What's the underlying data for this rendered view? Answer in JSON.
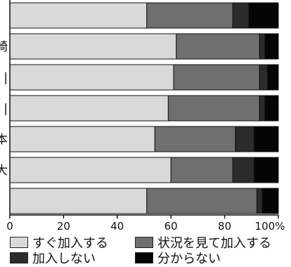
{
  "chart_data": {
    "type": "bar",
    "orientation": "horizontal",
    "stacked": true,
    "categories": [
      "",
      "崎",
      "|",
      "|",
      "本",
      "大",
      "」"
    ],
    "xlim": [
      0,
      100
    ],
    "x_ticks": [
      "0",
      "20",
      "40",
      "60",
      "80",
      "100%"
    ],
    "series": [
      {
        "name": "すぐ加入する",
        "color": "#d9d9d9",
        "values": [
          51,
          62,
          61,
          59,
          54,
          60,
          51
        ]
      },
      {
        "name": "状況を見て加入する",
        "color": "#6f6f6f",
        "values": [
          32,
          31,
          32,
          34,
          30,
          23,
          41
        ]
      },
      {
        "name": "加入しない",
        "color": "#2b2b2b",
        "values": [
          6,
          2,
          3,
          2,
          7,
          8,
          2
        ]
      },
      {
        "name": "分からない",
        "color": "#050505",
        "values": [
          11,
          5,
          4,
          5,
          9,
          9,
          6
        ]
      }
    ],
    "grid": false,
    "legend_position": "bottom"
  }
}
